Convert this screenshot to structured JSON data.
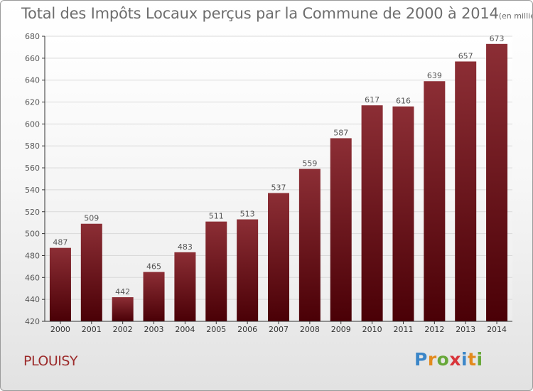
{
  "title": "Total des Impôts Locaux perçus par la Commune de 2000 à 2014",
  "title_unit": "(en milliers d'€)",
  "commune": "PLOUISY",
  "logo_letters": [
    "P",
    "r",
    "o",
    "x",
    "i",
    "t",
    "i"
  ],
  "colors": {
    "bar_top": "#8c2e35",
    "bar_bottom": "#4a0006",
    "grid": "#d9d9d9",
    "axis": "#333333",
    "text": "#555555",
    "commune": "#9c2b2b"
  },
  "chart_data": {
    "type": "bar",
    "title": "Total des Impôts Locaux perçus par la Commune de 2000 à 2014",
    "xlabel": "",
    "ylabel": "",
    "unit": "en milliers d'€",
    "categories": [
      "2000",
      "2001",
      "2002",
      "2003",
      "2004",
      "2005",
      "2006",
      "2007",
      "2008",
      "2009",
      "2010",
      "2011",
      "2012",
      "2013",
      "2014"
    ],
    "values": [
      487,
      509,
      442,
      465,
      483,
      511,
      513,
      537,
      559,
      587,
      617,
      616,
      639,
      657,
      673
    ],
    "ylim": [
      420,
      680
    ],
    "yticks": [
      420,
      440,
      460,
      480,
      500,
      520,
      540,
      560,
      580,
      600,
      620,
      640,
      660,
      680
    ],
    "grid": true,
    "legend": "none"
  }
}
